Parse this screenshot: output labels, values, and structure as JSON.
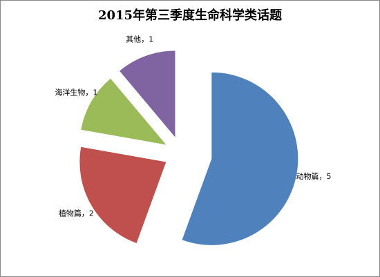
{
  "chart_data": {
    "type": "pie",
    "title": "2015年第三季度生命科学类话题",
    "values": [
      5,
      2,
      1,
      1
    ],
    "value_labels": [
      "动物篇，5",
      "植物篇，2",
      "海洋生物，1",
      "其他，1"
    ],
    "colors": [
      "#4f81bd",
      "#c0504d",
      "#9bbb59",
      "#8064a2"
    ],
    "start_angle": 0,
    "direction": "clockwise"
  }
}
